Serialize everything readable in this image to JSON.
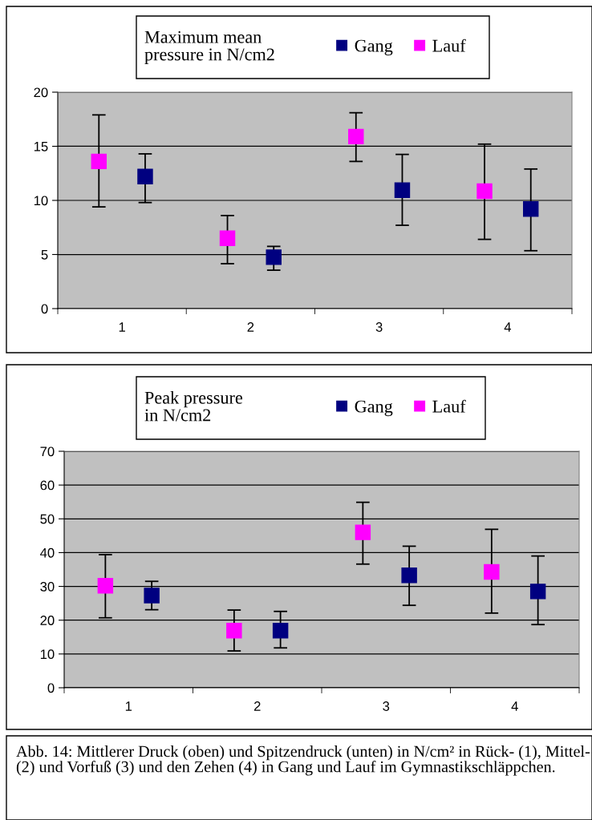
{
  "chart_data": [
    {
      "type": "scatter",
      "legend_title": "Maximum mean\npressure in N/cm2",
      "categories": [
        "1",
        "2",
        "3",
        "4"
      ],
      "ylim": [
        0,
        20
      ],
      "yticks": [
        0,
        5,
        10,
        15,
        20
      ],
      "grid": "y",
      "legend": "top",
      "marker": "square",
      "series": [
        {
          "name": "Gang",
          "color": "#000080",
          "values": [
            12.2,
            4.75,
            10.95,
            9.2
          ],
          "errors": [
            [
              9.8,
              14.3
            ],
            [
              3.55,
              5.75
            ],
            [
              7.7,
              14.25
            ],
            [
              5.35,
              12.9
            ]
          ]
        },
        {
          "name": "Lauf",
          "color": "#ff00ff",
          "values": [
            13.6,
            6.5,
            15.9,
            10.85
          ],
          "errors": [
            [
              9.4,
              17.9
            ],
            [
              4.15,
              8.6
            ],
            [
              13.6,
              18.1
            ],
            [
              6.4,
              15.2
            ]
          ]
        }
      ]
    },
    {
      "type": "scatter",
      "legend_title": "Peak pressure\nin N/cm2",
      "categories": [
        "1",
        "2",
        "3",
        "4"
      ],
      "ylim": [
        0,
        70
      ],
      "yticks": [
        0,
        10,
        20,
        30,
        40,
        50,
        60,
        70
      ],
      "grid": "y",
      "legend": "top",
      "marker": "square",
      "annotations": [
        "Abb. 14: Mittlerer Druck (oben) und Spitzendruck (unten) in N/cm² in Rück- (1), Mittel- (2) und Vorfuß (3) und den Zehen (4) in Gang und Lauf im Gymnastikschläppchen."
      ],
      "series": [
        {
          "name": "Gang",
          "color": "#000080",
          "values": [
            27.3,
            16.9,
            33.3,
            28.5
          ],
          "errors": [
            [
              23.1,
              31.5
            ],
            [
              11.8,
              22.6
            ],
            [
              24.4,
              41.9
            ],
            [
              18.7,
              39.0
            ]
          ]
        },
        {
          "name": "Lauf",
          "color": "#ff00ff",
          "values": [
            30.2,
            16.9,
            46.0,
            34.3
          ],
          "errors": [
            [
              20.7,
              39.4
            ],
            [
              10.9,
              23.0
            ],
            [
              36.6,
              54.9
            ],
            [
              22.1,
              46.9
            ]
          ]
        }
      ]
    }
  ]
}
